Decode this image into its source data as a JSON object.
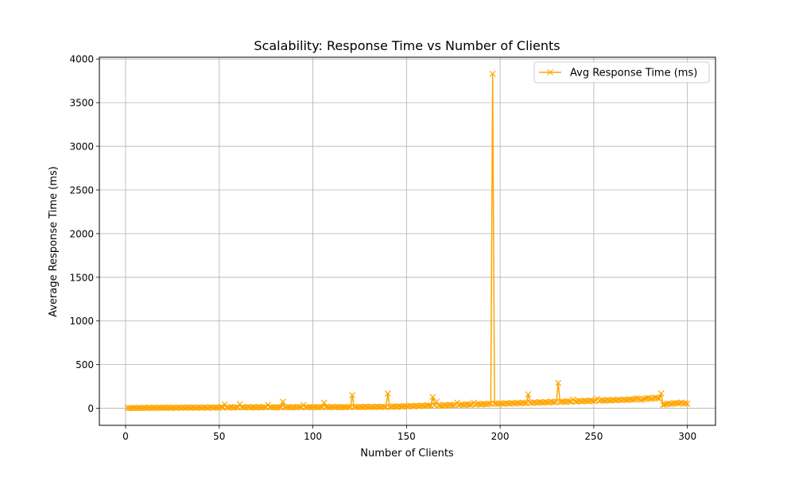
{
  "chart_data": {
    "type": "line",
    "title": "Scalability: Response Time vs Number of Clients",
    "xlabel": "Number of Clients",
    "ylabel": "Average Response Time (ms)",
    "xlim": [
      -14,
      315
    ],
    "ylim": [
      -195,
      4020
    ],
    "xticks": [
      0,
      50,
      100,
      150,
      200,
      250,
      300
    ],
    "yticks": [
      0,
      500,
      1000,
      1500,
      2000,
      2500,
      3000,
      3500,
      4000
    ],
    "grid": true,
    "legend": {
      "placement": "upper right"
    },
    "series": [
      {
        "name": "Avg Response Time (ms)",
        "color": "#ffa500",
        "marker": "x",
        "x": [
          1,
          2,
          3,
          4,
          5,
          6,
          7,
          8,
          9,
          10,
          11,
          12,
          13,
          14,
          15,
          16,
          17,
          18,
          19,
          20,
          21,
          22,
          23,
          24,
          25,
          26,
          27,
          28,
          29,
          30,
          31,
          32,
          33,
          34,
          35,
          36,
          37,
          38,
          39,
          40,
          41,
          42,
          43,
          44,
          45,
          46,
          47,
          48,
          49,
          50,
          51,
          52,
          53,
          54,
          55,
          56,
          57,
          58,
          59,
          60,
          61,
          62,
          63,
          64,
          65,
          66,
          67,
          68,
          69,
          70,
          71,
          72,
          73,
          74,
          75,
          76,
          77,
          78,
          79,
          80,
          81,
          82,
          83,
          84,
          85,
          86,
          87,
          88,
          89,
          90,
          91,
          92,
          93,
          94,
          95,
          96,
          97,
          98,
          99,
          100,
          101,
          102,
          103,
          104,
          105,
          106,
          107,
          108,
          109,
          110,
          111,
          112,
          113,
          114,
          115,
          116,
          117,
          118,
          119,
          120,
          121,
          122,
          123,
          124,
          125,
          126,
          127,
          128,
          129,
          130,
          131,
          132,
          133,
          134,
          135,
          136,
          137,
          138,
          139,
          140,
          141,
          142,
          143,
          144,
          145,
          146,
          147,
          148,
          149,
          150,
          151,
          152,
          153,
          154,
          155,
          156,
          157,
          158,
          159,
          160,
          161,
          162,
          163,
          164,
          165,
          166,
          167,
          168,
          169,
          170,
          171,
          172,
          173,
          174,
          175,
          176,
          177,
          178,
          179,
          180,
          181,
          182,
          183,
          184,
          185,
          186,
          187,
          188,
          189,
          190,
          191,
          192,
          193,
          194,
          195,
          196,
          197,
          198,
          199,
          200,
          201,
          202,
          203,
          204,
          205,
          206,
          207,
          208,
          209,
          210,
          211,
          212,
          213,
          214,
          215,
          216,
          217,
          218,
          219,
          220,
          221,
          222,
          223,
          224,
          225,
          226,
          227,
          228,
          229,
          230,
          231,
          232,
          233,
          234,
          235,
          236,
          237,
          238,
          239,
          240,
          241,
          242,
          243,
          244,
          245,
          246,
          247,
          248,
          249,
          250,
          251,
          252,
          253,
          254,
          255,
          256,
          257,
          258,
          259,
          260,
          261,
          262,
          263,
          264,
          265,
          266,
          267,
          268,
          269,
          270,
          271,
          272,
          273,
          274,
          275,
          276,
          277,
          278,
          279,
          280,
          281,
          282,
          283,
          284,
          285,
          286,
          287,
          288,
          289,
          290,
          291,
          292,
          293,
          294,
          295,
          296,
          297,
          298,
          299,
          300
        ],
        "y": [
          3,
          2,
          4,
          3,
          5,
          2,
          6,
          4,
          3,
          7,
          5,
          4,
          6,
          3,
          8,
          5,
          4,
          9,
          6,
          5,
          7,
          4,
          10,
          6,
          5,
          8,
          4,
          11,
          7,
          5,
          9,
          6,
          12,
          8,
          5,
          10,
          7,
          6,
          13,
          8,
          6,
          11,
          7,
          5,
          14,
          9,
          6,
          12,
          8,
          7,
          15,
          9,
          45,
          10,
          8,
          16,
          11,
          7,
          12,
          9,
          48,
          13,
          10,
          8,
          17,
          12,
          9,
          14,
          10,
          8,
          18,
          11,
          9,
          13,
          10,
          40,
          12,
          10,
          14,
          11,
          9,
          15,
          12,
          75,
          13,
          10,
          16,
          12,
          9,
          14,
          11,
          17,
          13,
          10,
          38,
          12,
          11,
          15,
          12,
          10,
          16,
          13,
          11,
          14,
          12,
          65,
          15,
          13,
          11,
          16,
          14,
          12,
          17,
          13,
          11,
          15,
          14,
          12,
          16,
          13,
          150,
          18,
          14,
          12,
          17,
          15,
          13,
          19,
          16,
          14,
          18,
          15,
          13,
          20,
          17,
          15,
          19,
          16,
          14,
          170,
          18,
          16,
          22,
          19,
          17,
          24,
          21,
          19,
          26,
          23,
          20,
          28,
          25,
          22,
          30,
          27,
          24,
          32,
          29,
          26,
          34,
          31,
          28,
          130,
          33,
          75,
          36,
          32,
          29,
          38,
          35,
          31,
          40,
          37,
          33,
          42,
          65,
          36,
          44,
          41,
          38,
          46,
          43,
          40,
          48,
          65,
          42,
          50,
          47,
          44,
          52,
          49,
          46,
          54,
          51,
          3830,
          55,
          52,
          48,
          57,
          54,
          50,
          59,
          56,
          52,
          61,
          58,
          54,
          63,
          60,
          56,
          65,
          62,
          58,
          160,
          64,
          60,
          69,
          66,
          62,
          71,
          68,
          64,
          73,
          70,
          66,
          75,
          72,
          68,
          77,
          290,
          70,
          79,
          76,
          72,
          81,
          78,
          74,
          100,
          80,
          76,
          85,
          82,
          78,
          87,
          84,
          80,
          89,
          86,
          82,
          91,
          110,
          85,
          93,
          90,
          87,
          95,
          92,
          89,
          97,
          94,
          91,
          99,
          96,
          93,
          101,
          98,
          95,
          103,
          100,
          97,
          105,
          115,
          110,
          95,
          102,
          108,
          114,
          120,
          112,
          106,
          118,
          124,
          116,
          110,
          170,
          40,
          45,
          50,
          55,
          48,
          52,
          58,
          62,
          56,
          60,
          66,
          54,
          58,
          52
        ]
      }
    ]
  }
}
